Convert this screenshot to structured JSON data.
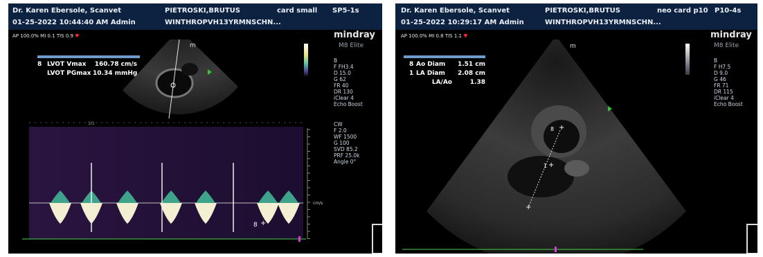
{
  "left": {
    "header": {
      "operator": "Dr. Karen Ebersole, Scanvet",
      "datetime": "01-25-2022 10:44:40 AM  Admin",
      "patient": "PIETROSKI,BRUTUS",
      "patient_id": "WINTHROPVH13YRMNSCHN...",
      "preset": "card small",
      "probe": "SP5-1s"
    },
    "ap_line": "AP 100.0%  MI 0.1  TIS 0.9",
    "brand": "mindray",
    "model": "M8 Elite",
    "params_b": [
      "B",
      "F FH3.4",
      "D 15.0",
      "G 62",
      "FR 40",
      "DR 130",
      "iClear 4",
      "Echo Boost"
    ],
    "params_cw": [
      "CW",
      "F 2.0",
      "WF 1500",
      "G 100",
      "SVD 85.2",
      "PRF 25.0k",
      "Angle 0°"
    ],
    "measurements": [
      {
        "marker": "8",
        "label": "LVOT Vmax",
        "value": "160.78 cm/s"
      },
      {
        "marker": "",
        "label": "LVOT PGmax",
        "value": "10.34 mmHg"
      }
    ],
    "scale_label": "cm/s",
    "cursor_label": "8",
    "timeline_label": "1/1"
  },
  "right": {
    "header": {
      "operator": "Dr. Karen Ebersole, Scanvet",
      "datetime": "01-25-2022 10:29:17 AM  Admin",
      "patient": "PIETROSKI,BRUTUS",
      "patient_id": "WINTHROPVH13YRMNSCHN...",
      "preset": "neo card p10",
      "probe": "P10-4s"
    },
    "ap_line": "AP 100.0%  MI 0.8  TIS 1.1",
    "brand": "mindray",
    "model": "M8 Elite",
    "params_b": [
      "B",
      "F H7.5",
      "D 9.0",
      "G 46",
      "FR 71",
      "DR 115",
      "iClear 4",
      "Echo Boost"
    ],
    "measurements": [
      {
        "marker": "8",
        "label": "Ao Diam",
        "value": "1.51 cm"
      },
      {
        "marker": "1",
        "label": "LA Diam",
        "value": "2.08 cm"
      },
      {
        "marker": "",
        "label": "LA/Ao",
        "value": "1.38"
      }
    ],
    "ao_marker": "8",
    "la_marker": "1",
    "orientation_mark": "m"
  },
  "colors": {
    "header_bg": "#0d2240",
    "accent_blue": "#6f9ccd",
    "heart": "#ff2a2a",
    "baseline_green": "#4bd24b",
    "marker_magenta": "#d83cd8"
  }
}
